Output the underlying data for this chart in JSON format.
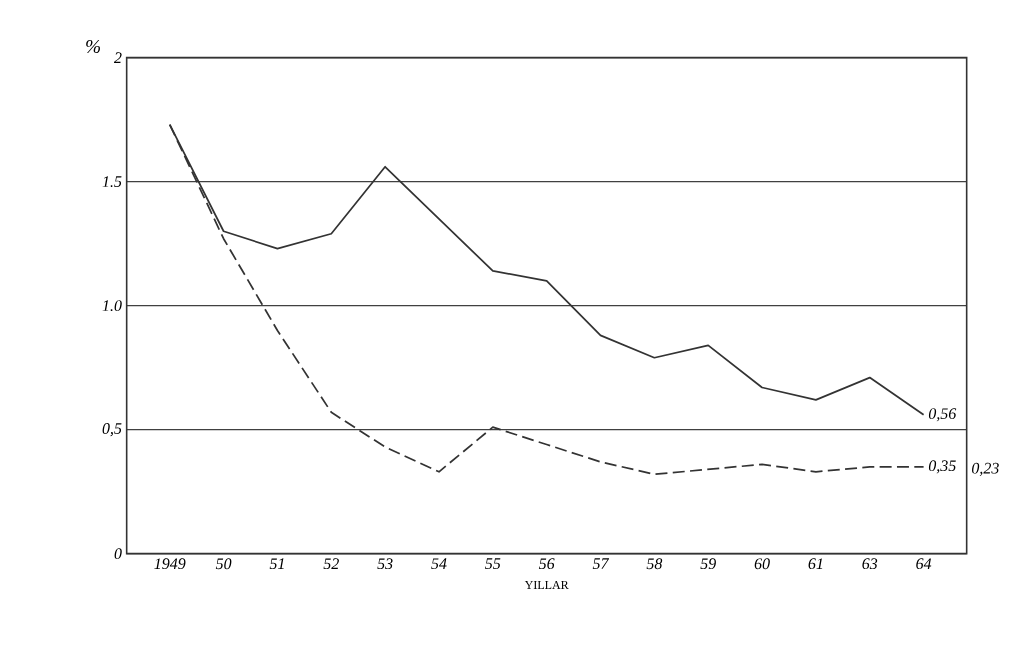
{
  "chart_data": {
    "type": "line",
    "ylabel": "%",
    "xlabel": "YILLAR",
    "categories": [
      "1949",
      "50",
      "51",
      "52",
      "53",
      "54",
      "55",
      "56",
      "57",
      "58",
      "59",
      "60",
      "61",
      "63",
      "64"
    ],
    "series": [
      {
        "color": "#333333",
        "line_style": "solid",
        "values": [
          1.73,
          1.3,
          1.23,
          1.29,
          1.56,
          1.35,
          1.14,
          1.1,
          0.88,
          0.79,
          0.84,
          0.67,
          0.62,
          0.71,
          0.56
        ],
        "value_labels": [
          null,
          null,
          null,
          null,
          null,
          null,
          null,
          null,
          null,
          null,
          null,
          null,
          null,
          null,
          "0,56"
        ]
      },
      {
        "color": "#333333",
        "line_style": "dashed",
        "values": [
          1.73,
          1.27,
          0.9,
          0.57,
          0.43,
          0.33,
          0.51,
          0.44,
          0.37,
          0.32,
          0.34,
          0.36,
          0.33,
          0.35,
          0.35
        ],
        "value_labels": [
          null,
          null,
          null,
          null,
          null,
          null,
          null,
          null,
          null,
          null,
          null,
          null,
          null,
          null,
          "0,35"
        ]
      }
    ],
    "ylim": [
      0,
      2
    ],
    "yticks": [
      0,
      {
        "value": 0.5,
        "label": "0,5"
      },
      {
        "value": 1.0,
        "label": "1.0"
      },
      {
        "value": 1.5,
        "label": "1.5"
      },
      2
    ],
    "grid": "y",
    "annotations": [
      "0,23"
    ]
  }
}
